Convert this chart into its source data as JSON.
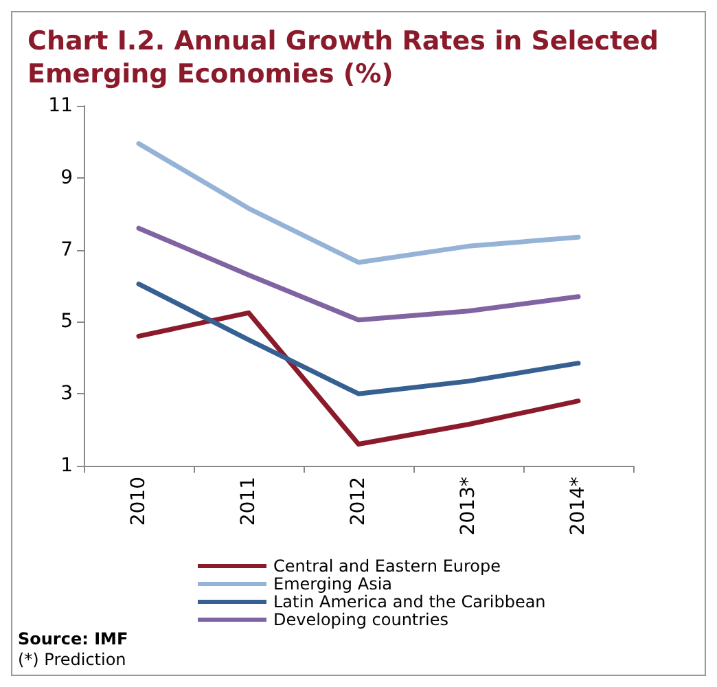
{
  "chart_data": {
    "type": "line",
    "title": "Chart I.2. Annual Growth Rates in Selected Emerging Economies (%)",
    "categories": [
      "2010",
      "2011",
      "2012",
      "2013*",
      "2014*"
    ],
    "series": [
      {
        "name": "Central and Eastern Europe",
        "color": "#8b1a2b",
        "values": [
          4.6,
          5.25,
          1.6,
          2.15,
          2.8
        ]
      },
      {
        "name": "Emerging Asia",
        "color": "#95b3d7",
        "values": [
          9.95,
          8.15,
          6.65,
          7.1,
          7.35
        ]
      },
      {
        "name": "Latin America and the Caribbean",
        "color": "#376092",
        "values": [
          6.05,
          4.5,
          3.0,
          3.35,
          3.85
        ]
      },
      {
        "name": "Developing countries",
        "color": "#8064a2",
        "values": [
          7.6,
          6.3,
          5.05,
          5.3,
          5.7
        ]
      }
    ],
    "ylim": [
      1,
      11
    ],
    "yticks": [
      1,
      3,
      5,
      7,
      9,
      11
    ],
    "grid": false,
    "legend": "bottom",
    "marker": "none",
    "line_style": "solid",
    "annotations": [
      "Source: IMF",
      "(*) Prediction"
    ]
  }
}
